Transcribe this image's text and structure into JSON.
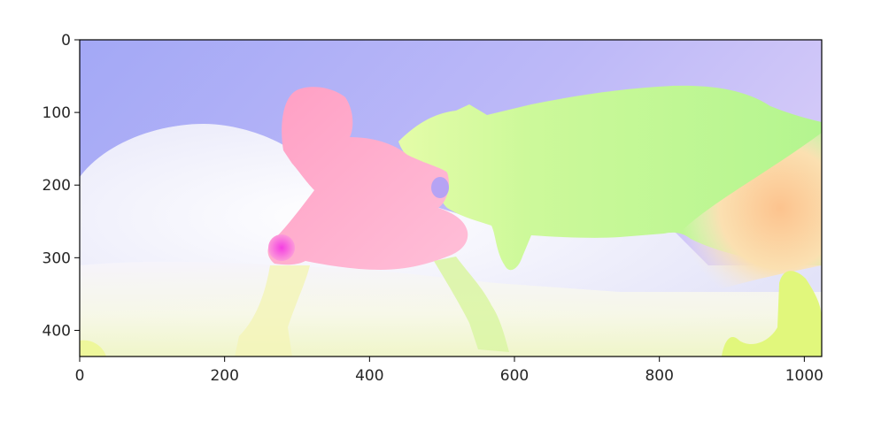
{
  "chart_data": {
    "type": "heatmap",
    "title": "",
    "xlabel": "",
    "ylabel": "",
    "xlim": [
      0,
      1024
    ],
    "ylim": [
      436,
      0
    ],
    "xticks": [
      0,
      200,
      400,
      600,
      800,
      1000
    ],
    "yticks": [
      0,
      100,
      200,
      300,
      400
    ],
    "xtick_labels": [
      "0",
      "200",
      "400",
      "600",
      "800",
      "1000"
    ],
    "ytick_labels": [
      "0",
      "100",
      "200",
      "300",
      "400"
    ],
    "grid": false,
    "image": {
      "description_colors": {
        "sky": "#a5aaf7",
        "cloud": "#f6f4fc",
        "ground": "#f7f9d8",
        "girl": "#ffaccf",
        "girl_knee": "#fc64e6",
        "dog": "#c6f98f",
        "dog_ear": "#b9a2f5",
        "dog_tail": "#fdd49a",
        "right_bottom": "#e0f77e"
      }
    }
  }
}
